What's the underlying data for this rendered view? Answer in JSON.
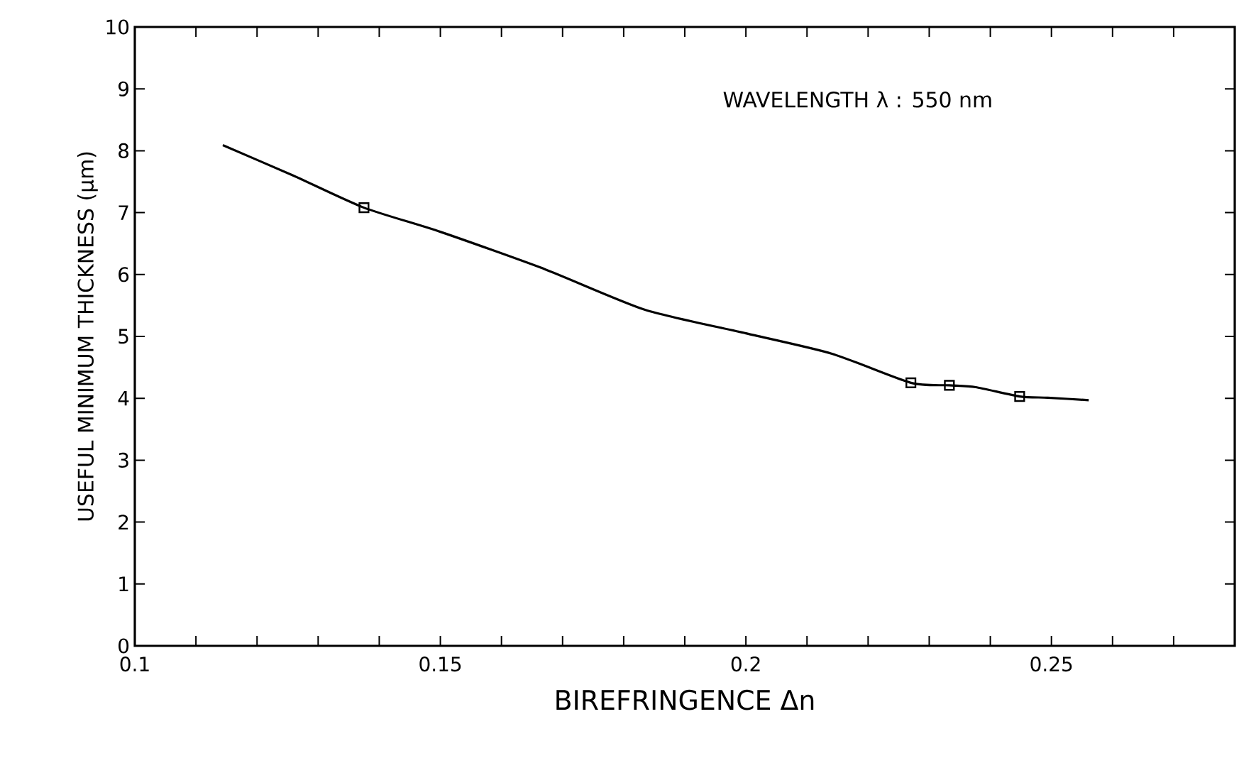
{
  "chart_data": {
    "type": "line",
    "xlabel": "BIREFRINGENCE   Δn",
    "ylabel": "USEFUL MINIMUM THICKNESS (μm)",
    "annotations": [
      "WAVELENGTH  λ : 550 nm"
    ],
    "xlim": [
      0.1,
      0.28
    ],
    "ylim": [
      0,
      10
    ],
    "xticks": [
      0.1,
      {
        "value": 0.11,
        "label": null
      },
      {
        "value": 0.12,
        "label": null
      },
      {
        "value": 0.13,
        "label": null
      },
      {
        "value": 0.14,
        "label": null
      },
      0.15,
      {
        "value": 0.16,
        "label": null
      },
      {
        "value": 0.17,
        "label": null
      },
      {
        "value": 0.18,
        "label": null
      },
      {
        "value": 0.19,
        "label": null
      },
      0.2,
      {
        "value": 0.21,
        "label": null
      },
      {
        "value": 0.22,
        "label": null
      },
      {
        "value": 0.23,
        "label": null
      },
      {
        "value": 0.24,
        "label": null
      },
      0.25,
      {
        "value": 0.26,
        "label": null
      },
      {
        "value": 0.27,
        "label": null
      }
    ],
    "yticks": [
      0,
      1,
      2,
      3,
      4,
      5,
      6,
      7,
      8,
      9,
      10
    ],
    "series": [
      {
        "color": "#000000",
        "marker": "none",
        "line_style": "solid",
        "x": [
          0.1144,
          0.1259,
          0.1375,
          0.15,
          0.167,
          0.1835,
          0.2,
          0.2141,
          0.227,
          0.2333,
          0.2376,
          0.2448,
          0.2494,
          0.2561
        ],
        "values": [
          8.09,
          7.6,
          7.08,
          6.69,
          6.09,
          5.43,
          5.05,
          4.72,
          4.25,
          4.21,
          4.18,
          4.03,
          4.01,
          3.97
        ]
      },
      {
        "type": "scatter",
        "color": "#000000",
        "marker": "square",
        "x": [
          0.1375,
          0.227,
          0.2333,
          0.2448
        ],
        "values": [
          7.08,
          4.25,
          4.21,
          4.03
        ]
      }
    ]
  }
}
